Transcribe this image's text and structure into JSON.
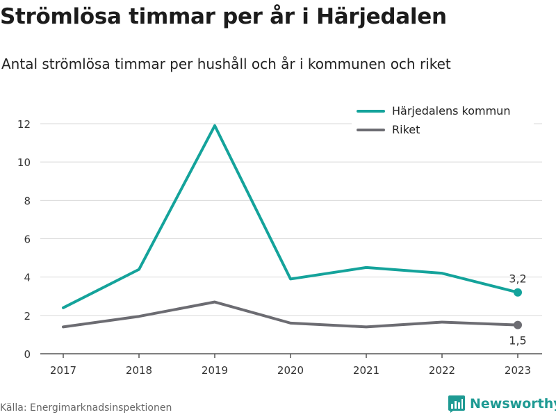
{
  "title": "Strömlösa timmar per år i Härjedalen",
  "subtitle": "Antal strömlösa timmar per hushåll och år i kommunen och riket",
  "source": "Källa: Energimarknadsinspektionen",
  "brand": {
    "name": "Newsworthy",
    "icon": "newsworthy-logo-icon"
  },
  "colors": {
    "kommun": "#14a39b",
    "riket": "#6c6c72",
    "grid": "#d9d9d9",
    "axis": "#555555"
  },
  "chart_data": {
    "type": "line",
    "categories": [
      "2017",
      "2018",
      "2019",
      "2020",
      "2021",
      "2022",
      "2023"
    ],
    "series": [
      {
        "name": "Härjedalens kommun",
        "values": [
          2.4,
          4.4,
          11.9,
          3.9,
          4.5,
          4.2,
          3.2
        ],
        "color": "#14a39b"
      },
      {
        "name": "Riket",
        "values": [
          1.4,
          1.95,
          2.7,
          1.6,
          1.4,
          1.65,
          1.5
        ],
        "color": "#6c6c72"
      }
    ],
    "yticks": [
      "0",
      "2",
      "4",
      "6",
      "8",
      "10",
      "12"
    ],
    "ylim": [
      0,
      12
    ],
    "end_labels": [
      "3,2",
      "1,5"
    ],
    "legend_position": "top-right",
    "grid": true
  }
}
